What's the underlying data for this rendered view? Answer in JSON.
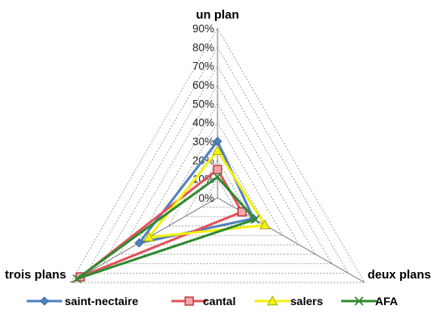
{
  "chart_data": {
    "type": "radar",
    "axes": [
      "un plan",
      "deux plans",
      "trois plans"
    ],
    "range": [
      0,
      90
    ],
    "ticks": [
      "0%",
      "10%",
      "20%",
      "30%",
      "40%",
      "50%",
      "60%",
      "70%",
      "80%",
      "90%"
    ],
    "grid": true,
    "legend": "bottom",
    "series": [
      {
        "name": "saint-nectaire",
        "values": [
          30,
          22,
          48
        ],
        "color": "#4f81bd",
        "marker": "diamond"
      },
      {
        "name": "cantal",
        "values": [
          15,
          15,
          84
        ],
        "color": "#e3525a",
        "marker": "square"
      },
      {
        "name": "salers",
        "values": [
          25,
          29,
          42
        ],
        "color": "#f2f20e",
        "marker": "triangle"
      },
      {
        "name": "AFA",
        "values": [
          11,
          23,
          86
        ],
        "color": "#2f8a2f",
        "marker": "x"
      }
    ]
  }
}
